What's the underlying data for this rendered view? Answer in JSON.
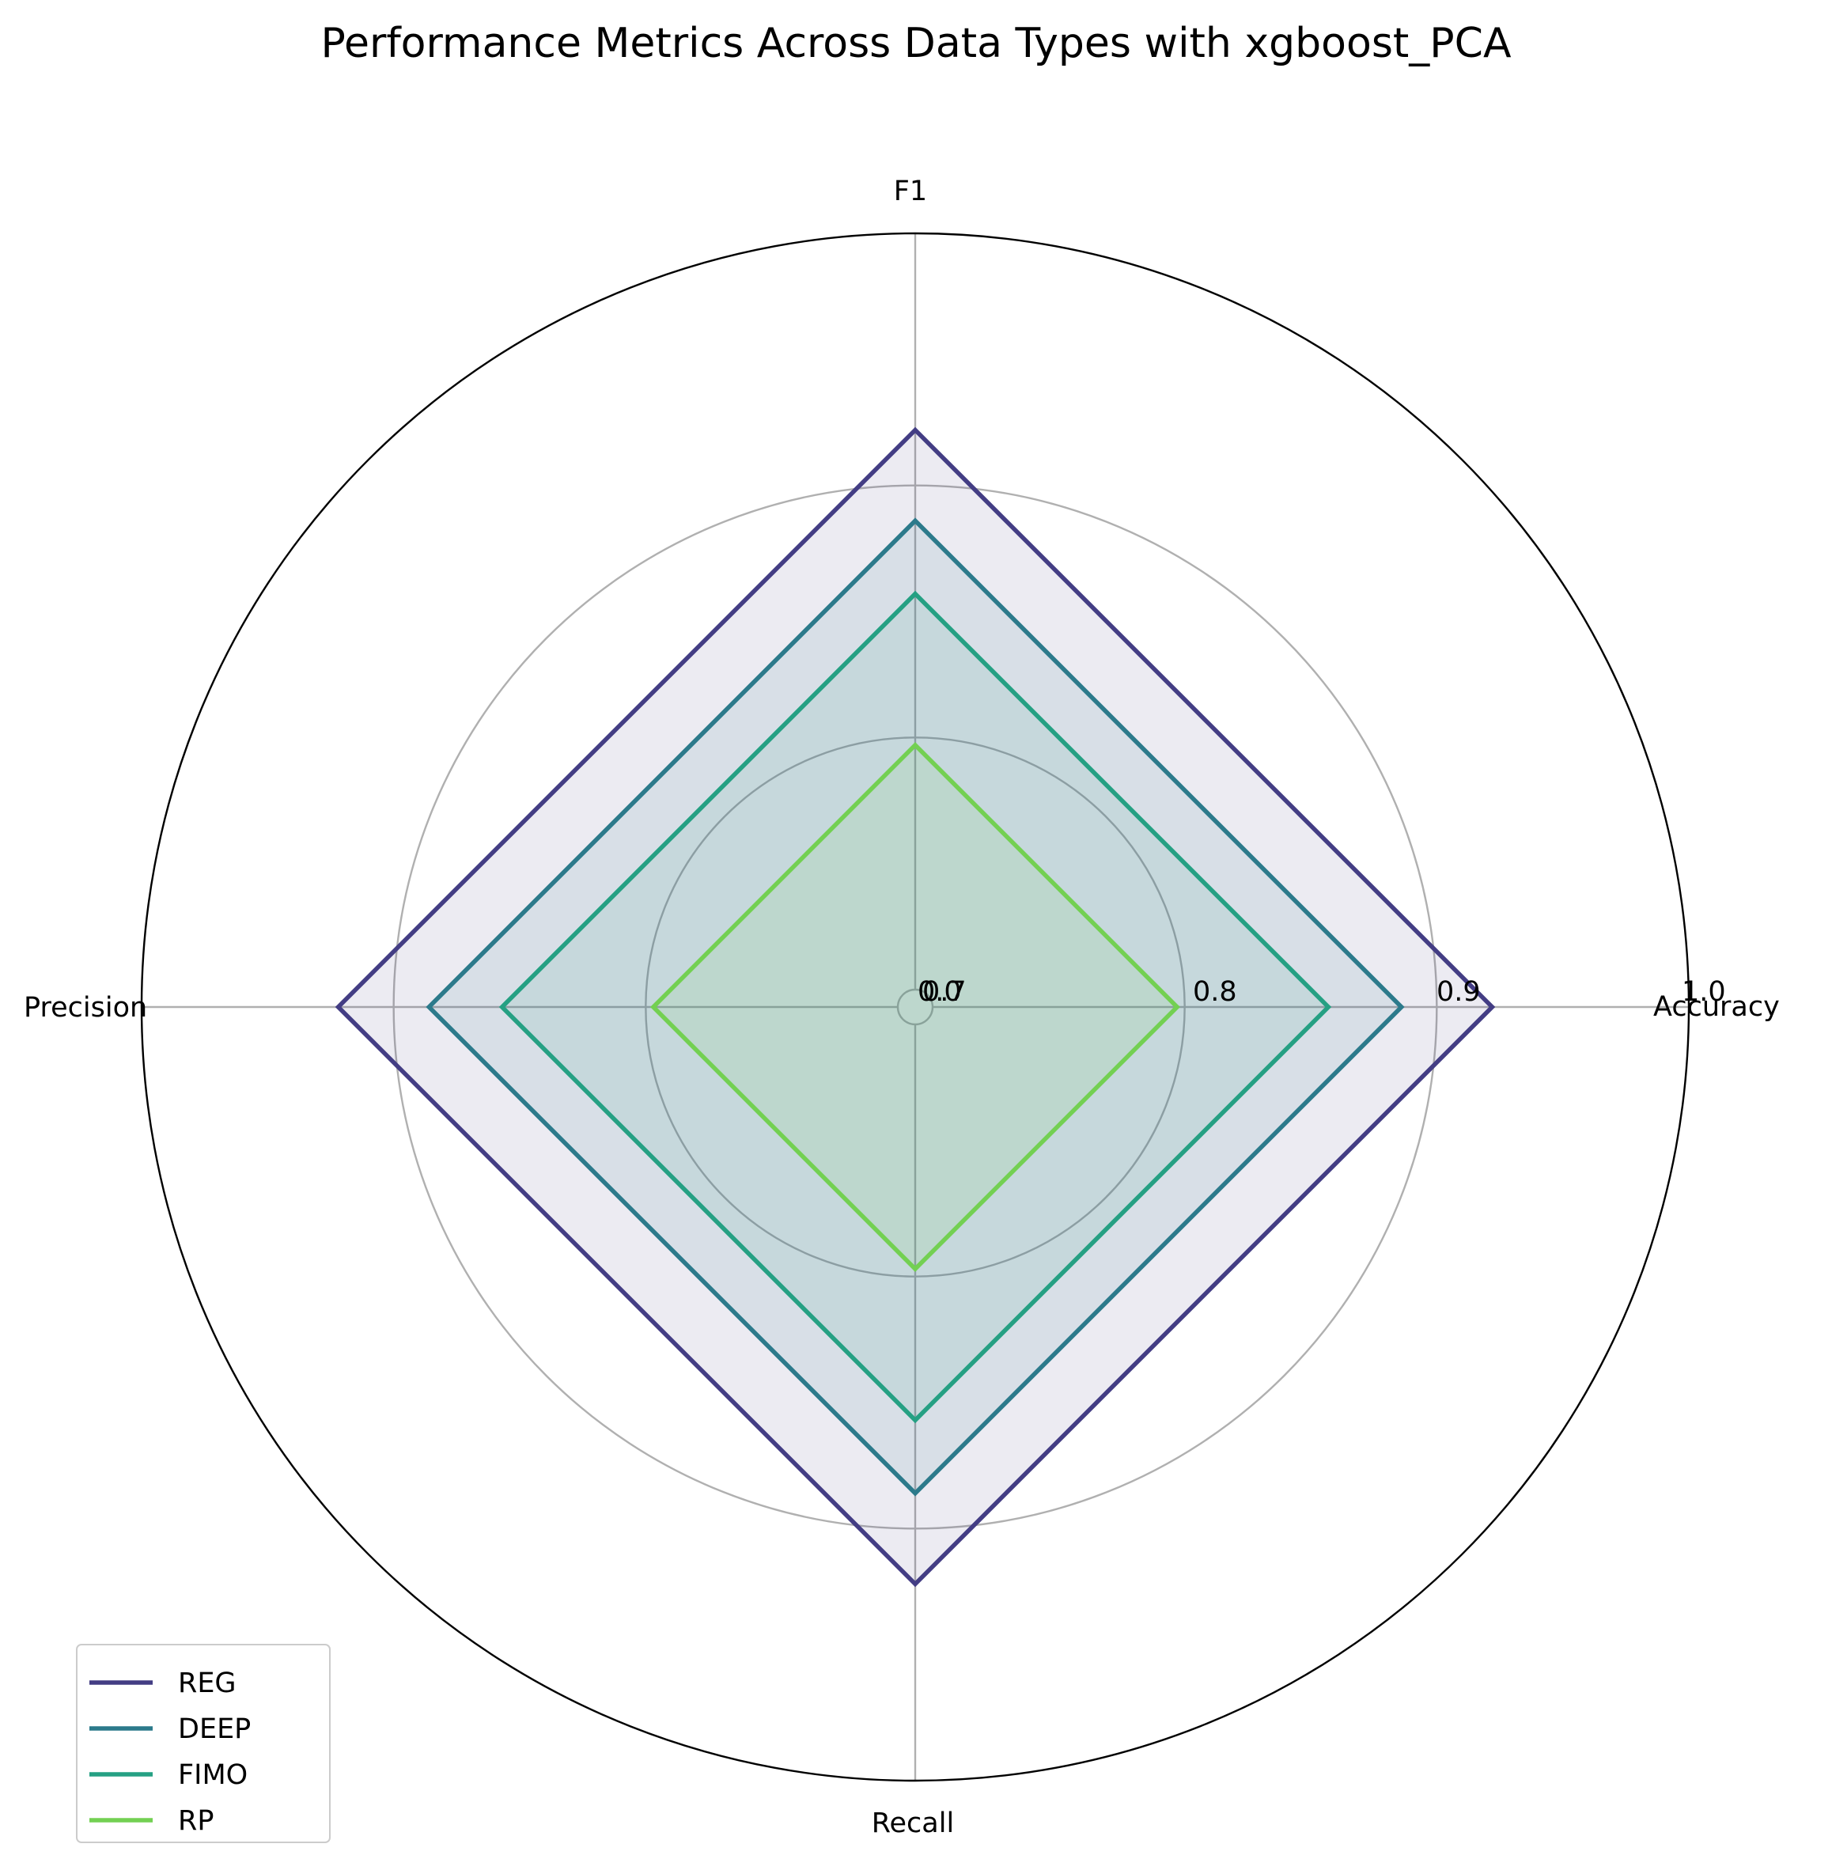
{
  "chart_data": {
    "type": "radar",
    "title": "Performance Metrics Across Data Types with xgboost_PCA",
    "axes": [
      "Accuracy",
      "F1",
      "Precision",
      "Recall"
    ],
    "rlim": [
      0.7,
      1.0
    ],
    "r_ticks": [
      "0.7",
      "0.8",
      "0.9",
      "1.0"
    ],
    "r_tick_values": [
      0.7,
      0.8,
      0.9,
      1.0
    ],
    "inner_tick_labels": [
      "0.0",
      "0.7"
    ],
    "series": [
      {
        "name": "REG",
        "values": [
          0.922,
          0.922,
          0.922,
          0.922
        ],
        "color": "#433d84"
      },
      {
        "name": "DEEP",
        "values": [
          0.886,
          0.886,
          0.886,
          0.886
        ],
        "color": "#2c7a8b"
      },
      {
        "name": "FIMO",
        "values": [
          0.857,
          0.857,
          0.857,
          0.857
        ],
        "color": "#25a083"
      },
      {
        "name": "RP",
        "values": [
          0.797,
          0.797,
          0.797,
          0.797
        ],
        "color": "#73d052"
      }
    ],
    "fill_alpha": 0.1,
    "grid": true,
    "legend_position": "lower-left"
  }
}
